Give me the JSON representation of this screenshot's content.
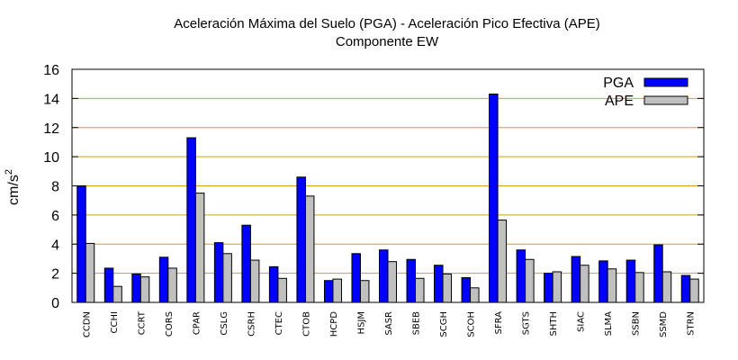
{
  "chart_data": {
    "type": "bar",
    "title": "Aceleración Máxima del Suelo (PGA) -  Aceleración Pico Efectiva (APE)",
    "subtitle": "Componente EW",
    "xlabel": "",
    "ylabel": "cm/s",
    "ylabel_superscript": "2",
    "ylim": [
      0,
      16
    ],
    "yticks": [
      0,
      2,
      4,
      6,
      8,
      10,
      12,
      14,
      16
    ],
    "grid": true,
    "legend_position": "top-right",
    "categories": [
      "CCDN",
      "CCHI",
      "CCRT",
      "CORS",
      "CPAR",
      "CSLG",
      "CSRH",
      "CTEC",
      "CTOB",
      "HCPD",
      "HSJM",
      "SASR",
      "SBEB",
      "SCGH",
      "SCOH",
      "SFRA",
      "SGTS",
      "SHTH",
      "SIAC",
      "SLMA",
      "SSBN",
      "SSMD",
      "STRN"
    ],
    "series": [
      {
        "name": "PGA",
        "color": "#0000ff",
        "values": [
          8.0,
          2.35,
          1.95,
          3.1,
          11.3,
          4.1,
          5.3,
          2.45,
          8.6,
          1.5,
          3.35,
          3.6,
          2.95,
          2.55,
          1.7,
          14.3,
          3.6,
          2.0,
          3.15,
          2.85,
          2.9,
          3.95,
          1.85
        ]
      },
      {
        "name": "APE",
        "color": "#c0c0c0",
        "values": [
          4.05,
          1.1,
          1.75,
          2.35,
          7.5,
          3.35,
          2.9,
          1.65,
          7.3,
          1.6,
          1.5,
          2.8,
          1.65,
          1.95,
          1.0,
          5.65,
          2.95,
          2.1,
          2.55,
          2.3,
          2.05,
          2.1,
          1.6
        ]
      }
    ],
    "grid_color": "#d4a017"
  }
}
